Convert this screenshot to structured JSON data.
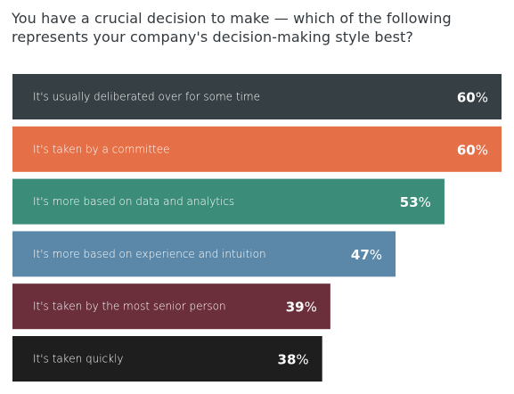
{
  "chart_data": {
    "type": "bar",
    "orientation": "horizontal",
    "title": "You have a crucial decision to make — which of the following represents your company's decision-making style best?",
    "categories": [
      "It's usually deliberated over for some time",
      "It's taken by a committee",
      "It's more based on data and analytics",
      "It's more based on experience and intuition",
      "It's taken by the most senior person",
      "It's taken quickly"
    ],
    "values": [
      60,
      60,
      53,
      47,
      39,
      38
    ],
    "unit": "%",
    "xlim": [
      0,
      60
    ],
    "grid": false,
    "legend": "none",
    "colors": [
      "#353f44",
      "#e56f46",
      "#3b8c79",
      "#5b88a8",
      "#6b2f3c",
      "#1e1e1e"
    ]
  }
}
